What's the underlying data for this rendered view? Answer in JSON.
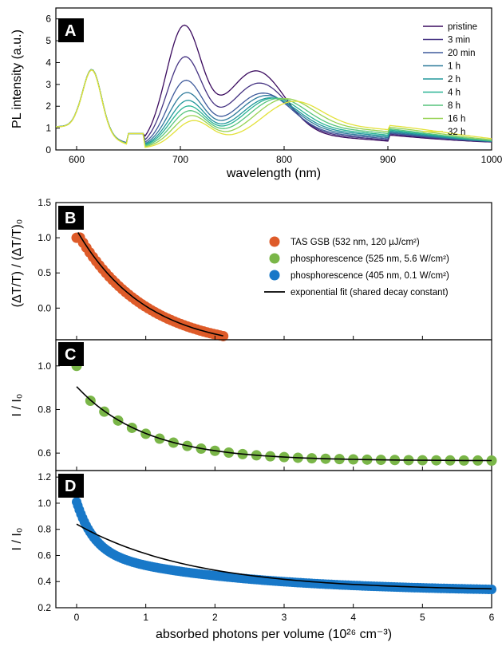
{
  "colors": {
    "tas": "#de5b29",
    "phos525": "#7ab648",
    "phos405": "#1878c8",
    "fit": "#000000",
    "label_bg": "#000000"
  },
  "chart_data": [
    {
      "panel": "A",
      "type": "line",
      "xlabel": "wavelength (nm)",
      "ylabel": "PL intensity (a.u.)",
      "xlim": [
        580,
        1000
      ],
      "ylim": [
        0,
        6.5
      ],
      "xticks": [
        600,
        700,
        800,
        900,
        1000
      ],
      "yticks": [
        0,
        1,
        2,
        3,
        4,
        5,
        6
      ],
      "legend_position": "top-right",
      "series": [
        {
          "name": "pristine",
          "color": "#3a0a5e",
          "peak700": 6.2,
          "peak770": 3.7,
          "tail": 0.28,
          "peak_shift": 0
        },
        {
          "name": "3 min",
          "color": "#463483",
          "peak700": 4.8,
          "peak770": 3.1,
          "tail": 0.28,
          "peak_shift": 4
        },
        {
          "name": "20 min",
          "color": "#3e5a9b",
          "peak700": 3.75,
          "peak770": 2.6,
          "tail": 0.27,
          "peak_shift": 8
        },
        {
          "name": "1 h",
          "color": "#2e7b9c",
          "peak700": 3.2,
          "peak770": 2.45,
          "tail": 0.26,
          "peak_shift": 12
        },
        {
          "name": "2 h",
          "color": "#22979c",
          "peak700": 2.85,
          "peak770": 2.3,
          "tail": 0.25,
          "peak_shift": 16
        },
        {
          "name": "4 h",
          "color": "#2ab394",
          "peak700": 2.6,
          "peak770": 2.25,
          "tail": 0.24,
          "peak_shift": 20
        },
        {
          "name": "8 h",
          "color": "#56c47c",
          "peak700": 2.4,
          "peak770": 2.2,
          "tail": 0.22,
          "peak_shift": 26
        },
        {
          "name": "16 h",
          "color": "#97d253",
          "peak700": 2.2,
          "peak770": 2.15,
          "tail": 0.21,
          "peak_shift": 34
        },
        {
          "name": "32 h",
          "color": "#e3e13a",
          "peak700": 2.0,
          "peak770": 2.0,
          "tail": 0.2,
          "peak_shift": 44
        }
      ]
    },
    {
      "panel": "B",
      "type": "scatter",
      "xlim": [
        -0.3,
        6
      ],
      "ylim": [
        -0.45,
        1.5
      ],
      "ylabel": "(ΔT/T) / (ΔT/T)₀",
      "yticks": [
        0.0,
        0.5,
        1.0,
        1.5
      ],
      "series": [
        {
          "name": "TAS GSB (532 nm, 120 µJ/cm²)",
          "color_key": "tas",
          "x_start": 0,
          "x_end": 2.12,
          "n": 46,
          "y0": 1.08,
          "decay": 1.0,
          "offset": -0.6
        }
      ],
      "fit": {
        "x_start": 0.02,
        "x_end": 2.12
      }
    },
    {
      "panel": "C",
      "type": "scatter",
      "xlim": [
        -0.3,
        6
      ],
      "ylim": [
        0.52,
        1.12
      ],
      "ylabel": "I / I₀",
      "yticks": [
        0.6,
        0.8,
        1.0
      ],
      "series": [
        {
          "name": "phosphorescence (525 nm, 5.6 W/cm²)",
          "color_key": "phos525",
          "x_start": 0.2,
          "x_end": 6.0,
          "n": 30,
          "first_point": [
            0,
            1.0
          ],
          "y0": 0.84,
          "yinf": 0.565,
          "decay": 1.0
        }
      ],
      "fit": {
        "x_start": 0,
        "x_end": 6.0,
        "y0": 0.905,
        "yinf": 0.565
      }
    },
    {
      "panel": "D",
      "type": "scatter",
      "xlim": [
        -0.3,
        6
      ],
      "ylim": [
        0.2,
        1.25
      ],
      "ylabel": "I / I₀",
      "xlabel": "absorbed photons per volume (10²⁶ cm⁻³)",
      "xticks": [
        0,
        1,
        2,
        3,
        4,
        5,
        6
      ],
      "yticks": [
        0.2,
        0.4,
        0.6,
        0.8,
        1.0,
        1.2
      ],
      "series": [
        {
          "name": "phosphorescence (405 nm, 0.1 W/cm²)",
          "color_key": "phos405",
          "x_start": 0,
          "x_end": 6.0,
          "n": 160,
          "y0": 1.01,
          "yinf": 0.32,
          "decay": 0.95
        }
      ],
      "fit": {
        "x_start": 0,
        "x_end": 6.0,
        "y0": 0.84,
        "yinf": 0.33
      }
    }
  ],
  "legend_bottom": [
    {
      "label": "TAS GSB (532 nm, 120 µJ/cm²)",
      "type": "dot",
      "color_key": "tas"
    },
    {
      "label": "phosphorescence (525 nm, 5.6 W/cm²)",
      "type": "dot",
      "color_key": "phos525"
    },
    {
      "label": "phosphorescence (405 nm, 0.1 W/cm²)",
      "type": "dot",
      "color_key": "phos405"
    },
    {
      "label": "exponential fit (shared decay constant)",
      "type": "line",
      "color_key": "fit"
    }
  ],
  "panel_labels": [
    "A",
    "B",
    "C",
    "D"
  ]
}
